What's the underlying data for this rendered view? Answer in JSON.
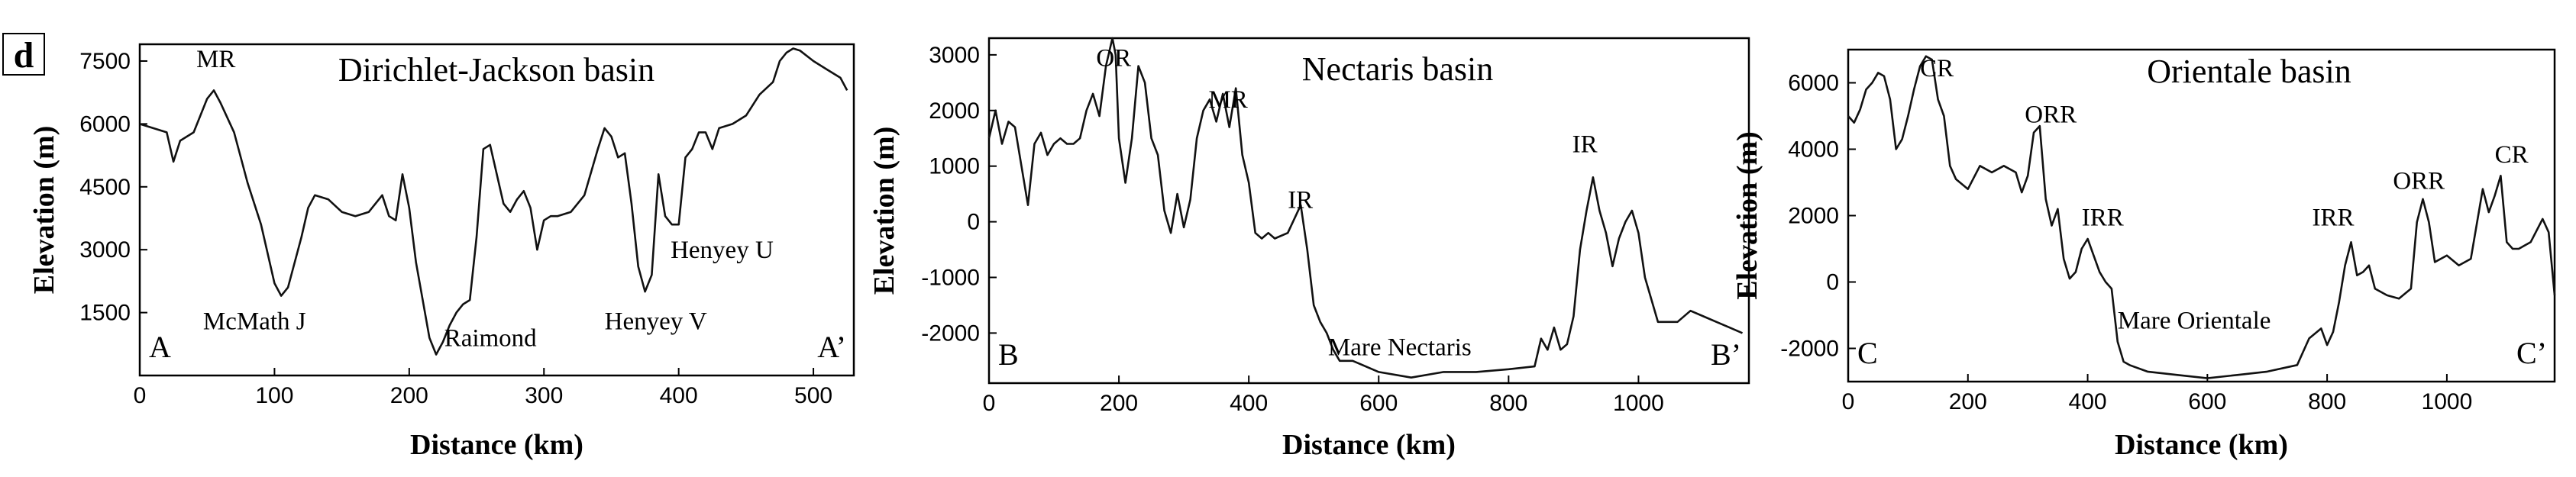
{
  "panel_label": "d",
  "chart_data": [
    {
      "type": "line",
      "title": "Dirichlet-Jackson basin",
      "xlabel": "Distance (km)",
      "ylabel": "Elevation (m)",
      "xlim": [
        0,
        530
      ],
      "ylim": [
        0,
        7900
      ],
      "xticks": [
        0,
        100,
        200,
        300,
        400,
        500
      ],
      "yticks": [
        1500,
        3000,
        4500,
        6000,
        7500
      ],
      "start_label": "A",
      "end_label": "A’",
      "annotations": [
        {
          "text": "MR",
          "x": 42,
          "y": 7350
        },
        {
          "text": "McMath J",
          "x": 47,
          "y": 1100
        },
        {
          "text": "Raimond",
          "x": 226,
          "y": 700
        },
        {
          "text": "Henyey V",
          "x": 345,
          "y": 1100
        },
        {
          "text": "Henyey U",
          "x": 394,
          "y": 2800
        }
      ],
      "series": [
        {
          "name": "Dirichlet-Jackson profile",
          "x": [
            0,
            10,
            20,
            25,
            30,
            40,
            50,
            55,
            60,
            70,
            75,
            80,
            90,
            100,
            105,
            110,
            120,
            125,
            130,
            140,
            150,
            160,
            170,
            180,
            185,
            190,
            195,
            200,
            205,
            210,
            215,
            220,
            225,
            230,
            235,
            240,
            245,
            250,
            255,
            260,
            265,
            270,
            275,
            280,
            285,
            290,
            295,
            300,
            305,
            310,
            320,
            330,
            340,
            345,
            350,
            355,
            360,
            365,
            370,
            375,
            380,
            385,
            390,
            395,
            400,
            405,
            410,
            415,
            420,
            425,
            430,
            440,
            450,
            460,
            470,
            475,
            480,
            485,
            490,
            500,
            510,
            520,
            525
          ],
          "y": [
            6000,
            5900,
            5800,
            5100,
            5600,
            5800,
            6600,
            6800,
            6500,
            5800,
            5200,
            4600,
            3600,
            2200,
            1900,
            2100,
            3300,
            4000,
            4300,
            4200,
            3900,
            3800,
            3900,
            4300,
            3800,
            3700,
            4800,
            4000,
            2700,
            1800,
            900,
            500,
            800,
            1200,
            1500,
            1700,
            1800,
            3300,
            5400,
            5500,
            4800,
            4100,
            3900,
            4200,
            4400,
            4000,
            3000,
            3700,
            3800,
            3800,
            3900,
            4300,
            5400,
            5900,
            5700,
            5200,
            5300,
            4100,
            2600,
            2000,
            2400,
            4800,
            3800,
            3600,
            3600,
            5200,
            5400,
            5800,
            5800,
            5400,
            5900,
            6000,
            6200,
            6700,
            7000,
            7500,
            7700,
            7800,
            7750,
            7500,
            7300,
            7100,
            6800
          ]
        }
      ]
    },
    {
      "type": "line",
      "title": "Nectaris basin",
      "xlabel": "Distance (km)",
      "ylabel": "Elevation (m)",
      "xlim": [
        0,
        1170
      ],
      "ylim": [
        -2900,
        3300
      ],
      "xticks": [
        0,
        200,
        400,
        600,
        800,
        1000
      ],
      "yticks": [
        -2000,
        -1000,
        0,
        1000,
        2000,
        3000
      ],
      "start_label": "B",
      "end_label": "B’",
      "annotations": [
        {
          "text": "OR",
          "x": 165,
          "y": 2800
        },
        {
          "text": "MR",
          "x": 338,
          "y": 2050
        },
        {
          "text": "IR",
          "x": 460,
          "y": 250
        },
        {
          "text": "Mare Nectaris",
          "x": 522,
          "y": -2400
        },
        {
          "text": "IR",
          "x": 898,
          "y": 1250
        }
      ],
      "series": [
        {
          "name": "Nectaris profile",
          "x": [
            0,
            10,
            20,
            30,
            40,
            50,
            60,
            70,
            80,
            90,
            100,
            110,
            120,
            130,
            140,
            150,
            160,
            170,
            180,
            190,
            195,
            200,
            210,
            220,
            230,
            240,
            250,
            260,
            270,
            280,
            290,
            300,
            310,
            320,
            330,
            340,
            350,
            360,
            370,
            380,
            390,
            400,
            410,
            420,
            430,
            440,
            460,
            480,
            490,
            500,
            510,
            520,
            530,
            540,
            560,
            600,
            650,
            700,
            750,
            800,
            840,
            850,
            860,
            870,
            880,
            890,
            900,
            910,
            920,
            930,
            940,
            950,
            960,
            970,
            980,
            990,
            1000,
            1010,
            1020,
            1030,
            1040,
            1050,
            1060,
            1080,
            1100,
            1120,
            1140,
            1160
          ],
          "y": [
            1500,
            2000,
            1400,
            1800,
            1700,
            1000,
            300,
            1400,
            1600,
            1200,
            1400,
            1500,
            1400,
            1400,
            1500,
            2000,
            2300,
            1900,
            2800,
            3300,
            3000,
            1500,
            700,
            1500,
            2800,
            2500,
            1500,
            1200,
            200,
            -200,
            500,
            -100,
            400,
            1500,
            2000,
            2200,
            1800,
            2300,
            1700,
            2400,
            1200,
            700,
            -200,
            -300,
            -200,
            -300,
            -200,
            300,
            -500,
            -1500,
            -1800,
            -2000,
            -2300,
            -2500,
            -2500,
            -2700,
            -2800,
            -2700,
            -2700,
            -2650,
            -2600,
            -2100,
            -2300,
            -1900,
            -2300,
            -2200,
            -1700,
            -500,
            200,
            800,
            200,
            -200,
            -800,
            -300,
            0,
            200,
            -200,
            -1000,
            -1400,
            -1800,
            -1800,
            -1800,
            -1800,
            -1600,
            -1700,
            -1800,
            -1900,
            -2000
          ]
        }
      ]
    },
    {
      "type": "line",
      "title": "Orientale basin",
      "xlabel": "Distance (km)",
      "ylabel": "Elevation (m)",
      "xlim": [
        0,
        1180
      ],
      "ylim": [
        -3000,
        7000
      ],
      "xticks": [
        0,
        200,
        400,
        600,
        800,
        1000
      ],
      "yticks": [
        -2000,
        0,
        2000,
        4000,
        6000
      ],
      "start_label": "C",
      "end_label": "C’",
      "annotations": [
        {
          "text": "CR",
          "x": 120,
          "y": 6200
        },
        {
          "text": "ORR",
          "x": 295,
          "y": 4800
        },
        {
          "text": "IRR",
          "x": 390,
          "y": 1700
        },
        {
          "text": "Mare Orientale",
          "x": 450,
          "y": -1400
        },
        {
          "text": "IRR",
          "x": 775,
          "y": 1700
        },
        {
          "text": "ORR",
          "x": 910,
          "y": 2800
        },
        {
          "text": "CR",
          "x": 1080,
          "y": 3600
        }
      ],
      "series": [
        {
          "name": "Orientale profile",
          "x": [
            0,
            10,
            20,
            30,
            40,
            50,
            60,
            70,
            80,
            90,
            100,
            110,
            120,
            130,
            140,
            150,
            160,
            170,
            180,
            200,
            220,
            240,
            260,
            280,
            290,
            300,
            310,
            320,
            330,
            340,
            350,
            360,
            370,
            380,
            390,
            400,
            410,
            420,
            430,
            440,
            450,
            460,
            470,
            500,
            550,
            600,
            650,
            700,
            750,
            770,
            790,
            800,
            810,
            820,
            830,
            840,
            850,
            860,
            870,
            880,
            900,
            920,
            940,
            950,
            960,
            970,
            980,
            1000,
            1020,
            1040,
            1060,
            1070,
            1080,
            1090,
            1100,
            1110,
            1120,
            1140,
            1160,
            1170,
            1180
          ],
          "y": [
            5000,
            4800,
            5200,
            5800,
            6000,
            6300,
            6200,
            5500,
            4000,
            4300,
            5000,
            5800,
            6500,
            6800,
            6700,
            5500,
            5000,
            3500,
            3100,
            2800,
            3500,
            3300,
            3500,
            3300,
            2700,
            3200,
            4500,
            4700,
            2500,
            1700,
            2200,
            700,
            100,
            300,
            1000,
            1300,
            800,
            300,
            0,
            -200,
            -1800,
            -2400,
            -2500,
            -2700,
            -2800,
            -2900,
            -2800,
            -2700,
            -2500,
            -1700,
            -1400,
            -1900,
            -1500,
            -600,
            500,
            1200,
            200,
            300,
            500,
            -200,
            -400,
            -500,
            -200,
            1800,
            2500,
            1800,
            600,
            800,
            500,
            700,
            2800,
            2100,
            2600,
            3200,
            1200,
            1000,
            1000,
            1200,
            1900,
            1500,
            -400
          ]
        }
      ]
    }
  ]
}
